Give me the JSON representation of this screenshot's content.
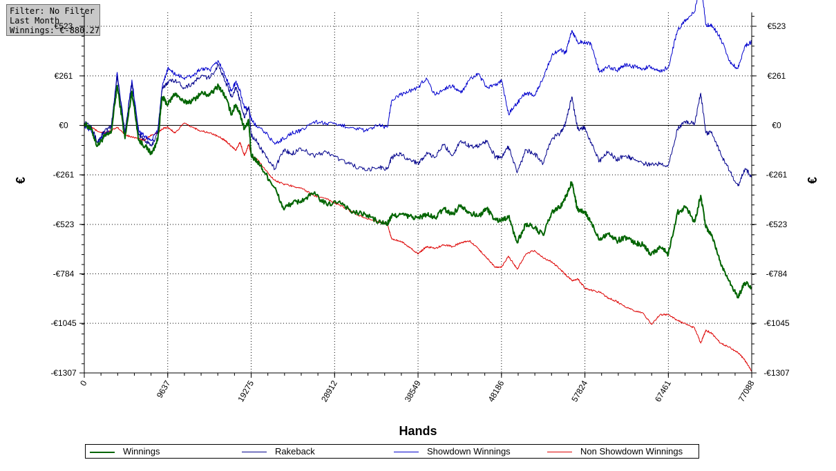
{
  "info": {
    "filter": "Filter: No Filter",
    "period": "Last Month",
    "winnings": "Winnings: €-880.27"
  },
  "chart_data": {
    "type": "line",
    "xlabel": "Hands",
    "ylabel": "€",
    "xlim": [
      0,
      77088
    ],
    "ylim": [
      -1307,
      523
    ],
    "x_ticks": [
      0,
      9637,
      19275,
      28912,
      38549,
      48186,
      57824,
      67461,
      77088
    ],
    "y_ticks": [
      523,
      261,
      0,
      -261,
      -523,
      -784,
      -1045,
      -1307
    ],
    "y_tick_labels": [
      "€523",
      "€261",
      "€0",
      "-€261",
      "-€523",
      "-€784",
      "-€1045",
      "-€1307"
    ],
    "grid": true,
    "legend_position": "bottom",
    "series": [
      {
        "name": "Winnings",
        "color": "#006400",
        "x": [
          0,
          800,
          1500,
          2300,
          3100,
          3800,
          4700,
          5500,
          6300,
          7000,
          7800,
          8500,
          9000,
          9637,
          10500,
          11500,
          12500,
          13500,
          14500,
          15500,
          16300,
          17000,
          17500,
          18000,
          18500,
          19000,
          19275,
          20000,
          21000,
          22000,
          23000,
          24000,
          25000,
          26500,
          28000,
          29500,
          31000,
          32500,
          34000,
          35000,
          35500,
          36500,
          37500,
          38549,
          39500,
          40500,
          41500,
          42500,
          43500,
          44500,
          45500,
          46500,
          47500,
          48186,
          49000,
          50000,
          51000,
          52000,
          53000,
          54000,
          55000,
          55600,
          56300,
          57000,
          57824,
          58500,
          59500,
          60500,
          61500,
          62500,
          63500,
          64500,
          65500,
          66500,
          67461,
          68500,
          69500,
          70500,
          71200,
          71800,
          72500,
          73500,
          74500,
          75500,
          76300,
          77088
        ],
        "y": [
          10,
          -20,
          -110,
          -60,
          -40,
          210,
          -70,
          180,
          -80,
          -110,
          -150,
          -70,
          150,
          110,
          170,
          120,
          130,
          170,
          160,
          210,
          150,
          60,
          110,
          60,
          -20,
          20,
          -160,
          -190,
          -260,
          -330,
          -440,
          -410,
          -400,
          -360,
          -420,
          -400,
          -460,
          -470,
          -510,
          -520,
          -480,
          -470,
          -480,
          -490,
          -470,
          -490,
          -440,
          -470,
          -420,
          -460,
          -480,
          -440,
          -500,
          -500,
          -480,
          -620,
          -520,
          -540,
          -580,
          -460,
          -430,
          -380,
          -300,
          -450,
          -460,
          -510,
          -600,
          -570,
          -610,
          -590,
          -620,
          -630,
          -680,
          -640,
          -680,
          -460,
          -430,
          -510,
          -370,
          -540,
          -580,
          -730,
          -820,
          -910,
          -830,
          -860
        ]
      },
      {
        "name": "Rakeback",
        "color": "#00008b",
        "x": [
          0,
          800,
          1500,
          2300,
          3100,
          3800,
          4700,
          5500,
          6300,
          7000,
          7800,
          8500,
          9000,
          9637,
          10500,
          11500,
          12500,
          13500,
          14500,
          15500,
          16300,
          17000,
          17500,
          18000,
          18500,
          19000,
          19275,
          20000,
          21000,
          22000,
          23000,
          24000,
          25000,
          26500,
          28000,
          29500,
          31000,
          32500,
          34000,
          35000,
          35500,
          36500,
          37500,
          38549,
          39500,
          40500,
          41500,
          42500,
          43500,
          44500,
          45500,
          46500,
          47500,
          48186,
          49000,
          50000,
          51000,
          52000,
          53000,
          54000,
          55000,
          55600,
          56300,
          57000,
          57824,
          58500,
          59500,
          60500,
          61500,
          62500,
          63500,
          64500,
          65500,
          66500,
          67461,
          68500,
          69500,
          70500,
          71200,
          71800,
          72500,
          73500,
          74500,
          75500,
          76300,
          77088
        ],
        "y": [
          20,
          0,
          -90,
          -30,
          -10,
          260,
          -40,
          220,
          -50,
          -80,
          -110,
          -30,
          190,
          230,
          240,
          200,
          220,
          260,
          250,
          320,
          230,
          150,
          200,
          130,
          40,
          100,
          -50,
          -90,
          -170,
          -230,
          -130,
          -150,
          -120,
          -160,
          -140,
          -180,
          -210,
          -240,
          -220,
          -230,
          -170,
          -150,
          -180,
          -200,
          -150,
          -170,
          -100,
          -160,
          -80,
          -110,
          -110,
          -80,
          -170,
          -170,
          -110,
          -250,
          -130,
          -150,
          -200,
          -70,
          -40,
          10,
          150,
          -20,
          -10,
          -90,
          -190,
          -140,
          -180,
          -160,
          -180,
          -200,
          -210,
          -200,
          -210,
          -20,
          20,
          10,
          170,
          -40,
          -40,
          -150,
          -240,
          -320,
          -230,
          -270
        ]
      },
      {
        "name": "Showdown Winnings",
        "color": "#0000cd",
        "x": [
          0,
          800,
          1500,
          2300,
          3100,
          3800,
          4700,
          5500,
          6300,
          7000,
          7800,
          8500,
          9000,
          9637,
          10500,
          11500,
          12500,
          13500,
          14500,
          15500,
          16300,
          17000,
          17500,
          18000,
          18500,
          19000,
          19275,
          20000,
          21000,
          22000,
          23000,
          24000,
          25000,
          26500,
          28000,
          29500,
          31000,
          32500,
          34000,
          35000,
          35500,
          36500,
          37500,
          38549,
          39500,
          40500,
          41500,
          42500,
          43500,
          44500,
          45500,
          46500,
          47500,
          48186,
          49000,
          50000,
          51000,
          52000,
          53000,
          54000,
          55000,
          55600,
          56300,
          57000,
          57824,
          58500,
          59500,
          60500,
          61500,
          62500,
          63500,
          64500,
          65500,
          66500,
          67461,
          68500,
          69500,
          70500,
          71200,
          71800,
          72500,
          73500,
          74500,
          75500,
          76300,
          77088
        ],
        "y": [
          0,
          -30,
          -90,
          -50,
          -30,
          280,
          -40,
          240,
          -30,
          -60,
          -80,
          -20,
          200,
          300,
          270,
          250,
          260,
          300,
          290,
          340,
          260,
          180,
          230,
          180,
          90,
          90,
          30,
          -10,
          -40,
          -100,
          -70,
          -40,
          -30,
          20,
          10,
          0,
          -10,
          -30,
          0,
          -10,
          130,
          160,
          180,
          200,
          250,
          160,
          190,
          210,
          170,
          240,
          270,
          200,
          210,
          240,
          60,
          120,
          170,
          160,
          250,
          370,
          400,
          380,
          500,
          440,
          440,
          430,
          280,
          310,
          290,
          320,
          310,
          300,
          310,
          280,
          310,
          500,
          560,
          600,
          770,
          530,
          530,
          460,
          340,
          300,
          420,
          440
        ]
      },
      {
        "name": "Non Showdown Winnings",
        "color": "#dd0000",
        "x": [
          0,
          800,
          1500,
          2300,
          3100,
          3800,
          4700,
          5500,
          6300,
          7000,
          7800,
          8500,
          9000,
          9637,
          10500,
          11500,
          12500,
          13500,
          14500,
          15500,
          16300,
          17000,
          17500,
          18000,
          18500,
          19000,
          19275,
          20000,
          21000,
          22000,
          23000,
          24000,
          25000,
          26500,
          28000,
          29500,
          31000,
          32500,
          34000,
          35000,
          35500,
          36500,
          37500,
          38549,
          39500,
          40500,
          41500,
          42500,
          43500,
          44500,
          45500,
          46500,
          47500,
          48186,
          49000,
          50000,
          51000,
          52000,
          53000,
          54000,
          55000,
          55600,
          56300,
          57000,
          57824,
          58500,
          59500,
          60500,
          61500,
          62500,
          63500,
          64500,
          65500,
          66500,
          67461,
          68500,
          69500,
          70500,
          71200,
          71800,
          72500,
          73500,
          74500,
          75500,
          76300,
          77088
        ],
        "y": [
          0,
          -10,
          -30,
          -40,
          -30,
          -10,
          -50,
          -60,
          -70,
          -80,
          -50,
          -40,
          -20,
          -10,
          -40,
          10,
          -10,
          -30,
          -40,
          -60,
          -80,
          -110,
          -130,
          -90,
          -160,
          -100,
          -160,
          -180,
          -240,
          -290,
          -310,
          -320,
          -330,
          -370,
          -390,
          -420,
          -460,
          -490,
          -510,
          -520,
          -600,
          -610,
          -640,
          -680,
          -640,
          -650,
          -630,
          -640,
          -620,
          -610,
          -650,
          -700,
          -750,
          -750,
          -690,
          -760,
          -680,
          -660,
          -700,
          -720,
          -760,
          -790,
          -820,
          -810,
          -860,
          -870,
          -880,
          -910,
          -930,
          -960,
          -980,
          -990,
          -1050,
          -1000,
          -1000,
          -1030,
          -1050,
          -1070,
          -1150,
          -1080,
          -1100,
          -1150,
          -1170,
          -1200,
          -1240,
          -1300
        ]
      }
    ]
  }
}
